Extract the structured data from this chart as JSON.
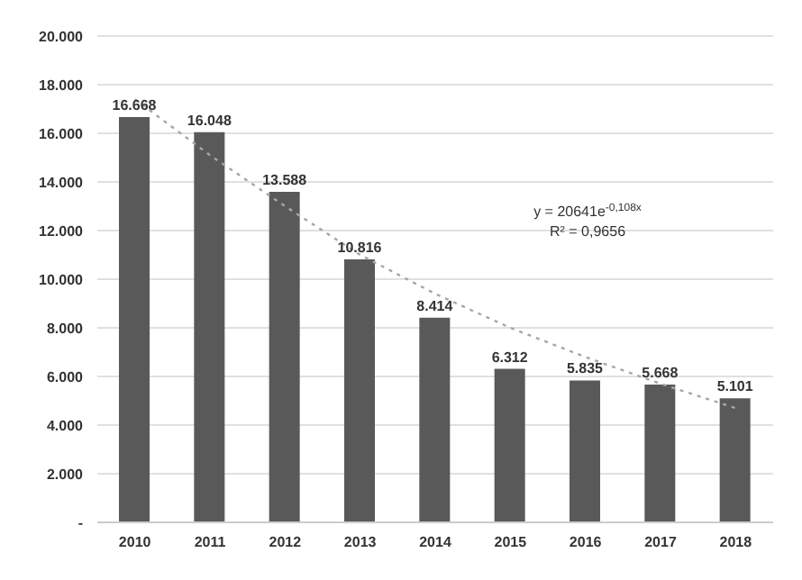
{
  "chart_data": {
    "type": "bar",
    "categories": [
      "2010",
      "2011",
      "2012",
      "2013",
      "2014",
      "2015",
      "2016",
      "2017",
      "2018"
    ],
    "series": [
      {
        "color": "#595959",
        "values": [
          16668,
          16048,
          13588,
          10816,
          8414,
          6312,
          5835,
          5668,
          5101
        ],
        "value_labels": [
          "16.668",
          "16.048",
          "13.588",
          "10.816",
          "8.414",
          "6.312",
          "5.835",
          "5.668",
          "5.101"
        ]
      },
      {
        "type": "line",
        "color": "#a6a6a6",
        "line_style": "dotted",
        "marker": "none",
        "values": [
          17400,
          15100,
          13000,
          11000,
          9400,
          8000,
          6800,
          5700,
          4700
        ]
      }
    ],
    "ylim": [
      0,
      20000
    ],
    "yticks": [
      {
        "value": 0,
        "label": "-"
      },
      {
        "value": 2000,
        "label": "2.000"
      },
      {
        "value": 4000,
        "label": "4.000"
      },
      {
        "value": 6000,
        "label": "6.000"
      },
      {
        "value": 8000,
        "label": "8.000"
      },
      {
        "value": 10000,
        "label": "10.000"
      },
      {
        "value": 12000,
        "label": "12.000"
      },
      {
        "value": 14000,
        "label": "14.000"
      },
      {
        "value": 16000,
        "label": "16.000"
      },
      {
        "value": 18000,
        "label": "18.000"
      },
      {
        "value": 20000,
        "label": "20.000"
      }
    ],
    "grid": "y",
    "annotations": [
      "y = 20641e$^{-0,108x}$",
      "R² = 0,9656"
    ]
  }
}
